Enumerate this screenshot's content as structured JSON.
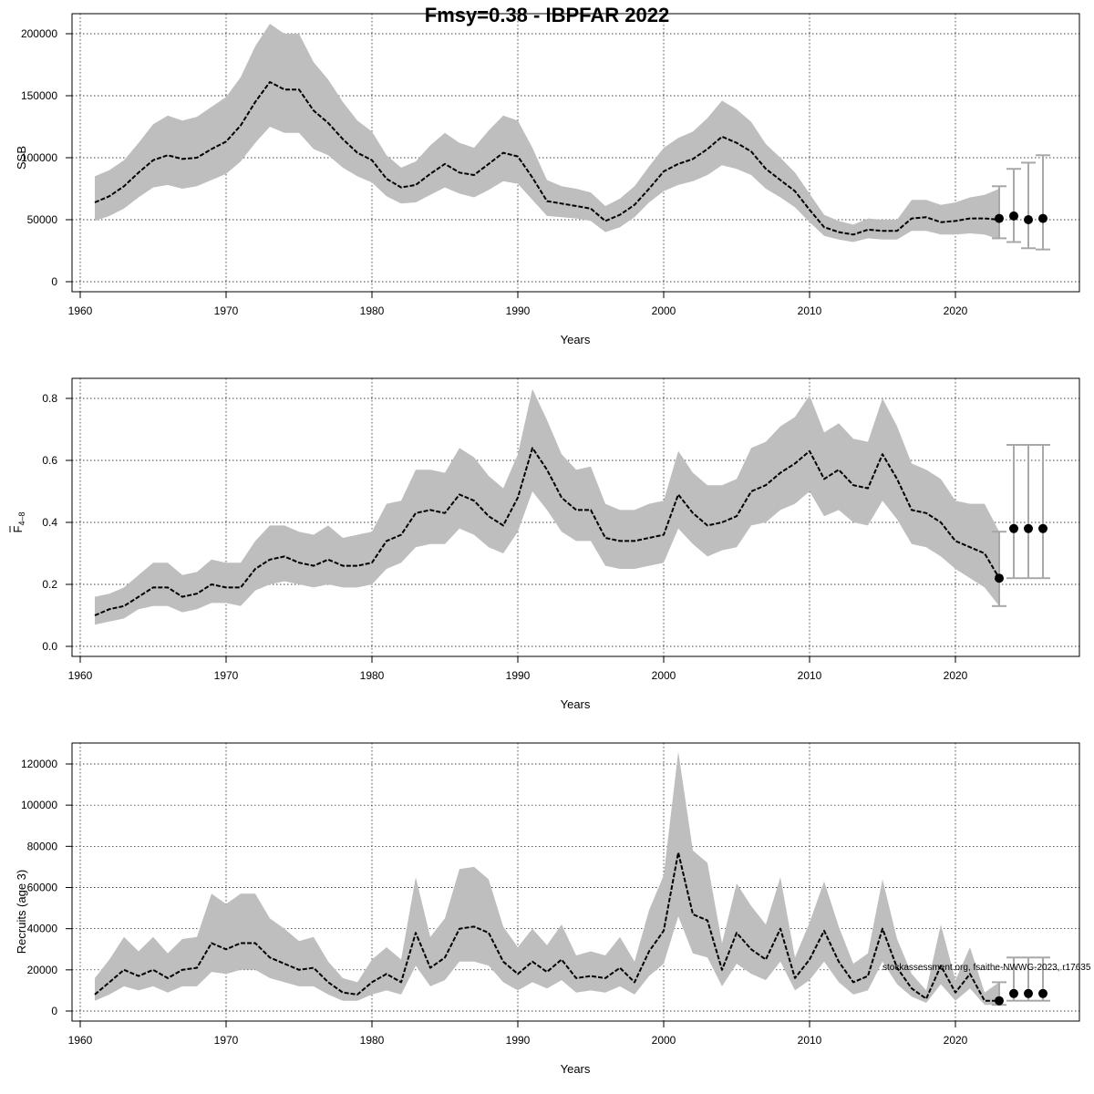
{
  "title": "Fmsy=0.38 - IBPFAR 2022",
  "note": "stockassessment.org, fsaithe-NWWG-2023, r17635",
  "chart_data": [
    {
      "type": "area",
      "id": "ssb",
      "ylabel": "SSB",
      "xlabel": "Years",
      "xlim": [
        1961,
        2026
      ],
      "ylim": [
        0,
        200000
      ],
      "xticks": [
        1960,
        1970,
        1980,
        1990,
        2000,
        2010,
        2020
      ],
      "yticks": [
        0,
        50000,
        100000,
        150000,
        200000
      ],
      "ytick_labels": [
        "0",
        "50000",
        "100000",
        "150000",
        "200000"
      ],
      "grid": true,
      "years": [
        1961,
        1962,
        1963,
        1964,
        1965,
        1966,
        1967,
        1968,
        1969,
        1970,
        1971,
        1972,
        1973,
        1974,
        1975,
        1976,
        1977,
        1978,
        1979,
        1980,
        1981,
        1982,
        1983,
        1984,
        1985,
        1986,
        1987,
        1988,
        1989,
        1990,
        1991,
        1992,
        1993,
        1994,
        1995,
        1996,
        1997,
        1998,
        1999,
        2000,
        2001,
        2002,
        2003,
        2004,
        2005,
        2006,
        2007,
        2008,
        2009,
        2010,
        2011,
        2012,
        2013,
        2014,
        2015,
        2016,
        2017,
        2018,
        2019,
        2020,
        2021,
        2022,
        2023
      ],
      "estimate": [
        64000,
        69000,
        77000,
        88000,
        98000,
        102000,
        99000,
        100000,
        107000,
        113000,
        126000,
        145000,
        161000,
        155000,
        155000,
        138000,
        128000,
        115000,
        104000,
        98000,
        83000,
        76000,
        78000,
        87000,
        95000,
        88000,
        86000,
        95000,
        104000,
        101000,
        84000,
        65000,
        63000,
        61000,
        59000,
        49000,
        54000,
        62000,
        75000,
        89000,
        95000,
        99000,
        107000,
        117000,
        112000,
        105000,
        91000,
        82000,
        73000,
        58000,
        44000,
        40000,
        38000,
        42000,
        41000,
        41000,
        51000,
        52000,
        48000,
        49000,
        51000,
        51000,
        50000
      ],
      "lower": [
        49000,
        53000,
        59000,
        68000,
        76000,
        78000,
        75000,
        77000,
        82000,
        87000,
        97000,
        112000,
        125000,
        120000,
        120000,
        107000,
        102000,
        92000,
        85000,
        80000,
        69000,
        63000,
        64000,
        70000,
        76000,
        71000,
        68000,
        74000,
        81000,
        79000,
        66000,
        53000,
        52000,
        51000,
        49000,
        40000,
        44000,
        52000,
        64000,
        73000,
        78000,
        81000,
        86000,
        94000,
        91000,
        86000,
        75000,
        68000,
        60000,
        48000,
        37000,
        34000,
        32000,
        35000,
        34000,
        34000,
        41000,
        41000,
        38000,
        38000,
        39000,
        38000,
        34000
      ],
      "upper": [
        85000,
        90000,
        98000,
        112000,
        127000,
        134000,
        130000,
        133000,
        141000,
        149000,
        165000,
        190000,
        208000,
        200000,
        200000,
        177000,
        163000,
        145000,
        130000,
        121000,
        102000,
        92000,
        97000,
        110000,
        120000,
        112000,
        108000,
        122000,
        134000,
        130000,
        108000,
        82000,
        77000,
        75000,
        72000,
        61000,
        67000,
        77000,
        93000,
        108000,
        116000,
        121000,
        132000,
        146000,
        139000,
        129000,
        111000,
        100000,
        88000,
        71000,
        54000,
        49000,
        46000,
        51000,
        50000,
        50000,
        66000,
        66000,
        62000,
        64000,
        68000,
        70000,
        75000
      ],
      "forecast": [
        {
          "year": 2023,
          "value": 51000,
          "low": 35000,
          "high": 77000
        },
        {
          "year": 2024,
          "value": 53000,
          "low": 32000,
          "high": 91000
        },
        {
          "year": 2025,
          "value": 50000,
          "low": 27000,
          "high": 96000
        },
        {
          "year": 2026,
          "value": 51000,
          "low": 26000,
          "high": 102000
        }
      ]
    },
    {
      "type": "area",
      "id": "fbar",
      "ylabel": "F",
      "ylabel_sub": "4–8",
      "xlabel": "Years",
      "xlim": [
        1961,
        2026
      ],
      "ylim": [
        0,
        0.8
      ],
      "xticks": [
        1960,
        1970,
        1980,
        1990,
        2000,
        2010,
        2020
      ],
      "yticks": [
        0,
        0.2,
        0.4,
        0.6,
        0.8
      ],
      "ytick_labels": [
        "0.0",
        "0.2",
        "0.4",
        "0.6",
        "0.8"
      ],
      "grid": true,
      "years": [
        1961,
        1962,
        1963,
        1964,
        1965,
        1966,
        1967,
        1968,
        1969,
        1970,
        1971,
        1972,
        1973,
        1974,
        1975,
        1976,
        1977,
        1978,
        1979,
        1980,
        1981,
        1982,
        1983,
        1984,
        1985,
        1986,
        1987,
        1988,
        1989,
        1990,
        1991,
        1992,
        1993,
        1994,
        1995,
        1996,
        1997,
        1998,
        1999,
        2000,
        2001,
        2002,
        2003,
        2004,
        2005,
        2006,
        2007,
        2008,
        2009,
        2010,
        2011,
        2012,
        2013,
        2014,
        2015,
        2016,
        2017,
        2018,
        2019,
        2020,
        2021,
        2022,
        2023
      ],
      "estimate": [
        0.1,
        0.12,
        0.13,
        0.16,
        0.19,
        0.19,
        0.16,
        0.17,
        0.2,
        0.19,
        0.19,
        0.25,
        0.28,
        0.29,
        0.27,
        0.26,
        0.28,
        0.26,
        0.26,
        0.27,
        0.34,
        0.36,
        0.43,
        0.44,
        0.43,
        0.49,
        0.47,
        0.42,
        0.39,
        0.48,
        0.64,
        0.57,
        0.48,
        0.44,
        0.44,
        0.35,
        0.34,
        0.34,
        0.35,
        0.36,
        0.49,
        0.43,
        0.39,
        0.4,
        0.42,
        0.5,
        0.52,
        0.56,
        0.59,
        0.63,
        0.54,
        0.57,
        0.52,
        0.51,
        0.62,
        0.54,
        0.44,
        0.43,
        0.4,
        0.34,
        0.32,
        0.3,
        0.22
      ],
      "lower": [
        0.07,
        0.08,
        0.09,
        0.12,
        0.13,
        0.13,
        0.11,
        0.12,
        0.14,
        0.14,
        0.13,
        0.18,
        0.2,
        0.21,
        0.2,
        0.19,
        0.2,
        0.19,
        0.19,
        0.2,
        0.25,
        0.27,
        0.32,
        0.33,
        0.33,
        0.38,
        0.36,
        0.32,
        0.3,
        0.37,
        0.5,
        0.44,
        0.37,
        0.34,
        0.34,
        0.26,
        0.25,
        0.25,
        0.26,
        0.27,
        0.38,
        0.33,
        0.29,
        0.31,
        0.32,
        0.39,
        0.4,
        0.44,
        0.46,
        0.5,
        0.42,
        0.44,
        0.4,
        0.39,
        0.47,
        0.41,
        0.33,
        0.32,
        0.29,
        0.25,
        0.22,
        0.19,
        0.13
      ],
      "upper": [
        0.16,
        0.17,
        0.19,
        0.23,
        0.27,
        0.27,
        0.23,
        0.24,
        0.28,
        0.27,
        0.27,
        0.34,
        0.39,
        0.39,
        0.37,
        0.36,
        0.39,
        0.35,
        0.36,
        0.37,
        0.46,
        0.47,
        0.57,
        0.57,
        0.56,
        0.64,
        0.61,
        0.55,
        0.51,
        0.62,
        0.83,
        0.73,
        0.62,
        0.57,
        0.58,
        0.46,
        0.44,
        0.44,
        0.46,
        0.47,
        0.63,
        0.56,
        0.52,
        0.52,
        0.54,
        0.64,
        0.66,
        0.71,
        0.74,
        0.81,
        0.69,
        0.72,
        0.67,
        0.66,
        0.8,
        0.71,
        0.59,
        0.57,
        0.54,
        0.47,
        0.46,
        0.46,
        0.37
      ],
      "forecast": [
        {
          "year": 2023,
          "value": 0.22,
          "low": 0.13,
          "high": 0.37
        },
        {
          "year": 2024,
          "value": 0.38,
          "low": 0.22,
          "high": 0.65
        },
        {
          "year": 2025,
          "value": 0.38,
          "low": 0.22,
          "high": 0.65
        },
        {
          "year": 2026,
          "value": 0.38,
          "low": 0.22,
          "high": 0.65
        }
      ]
    },
    {
      "type": "area",
      "id": "recruits",
      "ylabel": "Recruits (age 3)",
      "xlabel": "Years",
      "xlim": [
        1961,
        2026
      ],
      "ylim": [
        0,
        120000
      ],
      "xticks": [
        1960,
        1970,
        1980,
        1990,
        2000,
        2010,
        2020
      ],
      "yticks": [
        0,
        20000,
        40000,
        60000,
        80000,
        100000,
        120000
      ],
      "ytick_labels": [
        "0",
        "20000",
        "40000",
        "60000",
        "80000",
        "100000",
        "120000"
      ],
      "grid": true,
      "years": [
        1961,
        1962,
        1963,
        1964,
        1965,
        1966,
        1967,
        1968,
        1969,
        1970,
        1971,
        1972,
        1973,
        1974,
        1975,
        1976,
        1977,
        1978,
        1979,
        1980,
        1981,
        1982,
        1983,
        1984,
        1985,
        1986,
        1987,
        1988,
        1989,
        1990,
        1991,
        1992,
        1993,
        1994,
        1995,
        1996,
        1997,
        1998,
        1999,
        2000,
        2001,
        2002,
        2003,
        2004,
        2005,
        2006,
        2007,
        2008,
        2009,
        2010,
        2011,
        2012,
        2013,
        2014,
        2015,
        2016,
        2017,
        2018,
        2019,
        2020,
        2021,
        2022,
        2023
      ],
      "estimate": [
        8000,
        14000,
        20000,
        17000,
        20000,
        16000,
        20000,
        21000,
        33000,
        30000,
        33000,
        33000,
        26000,
        23000,
        20000,
        21000,
        14000,
        9000,
        8000,
        14000,
        18000,
        14000,
        38000,
        21000,
        26000,
        40000,
        41000,
        38000,
        24000,
        18000,
        24000,
        19000,
        25000,
        16000,
        17000,
        16000,
        21000,
        14000,
        29000,
        39000,
        77000,
        47000,
        44000,
        20000,
        38000,
        30000,
        25000,
        40000,
        16000,
        25000,
        39000,
        24000,
        14000,
        17000,
        40000,
        21000,
        11000,
        6000,
        22000,
        9000,
        18000,
        5000,
        5000
      ],
      "lower": [
        5000,
        8000,
        12000,
        10000,
        12000,
        9000,
        12000,
        12000,
        19000,
        18000,
        20000,
        20000,
        16000,
        14000,
        12000,
        12000,
        8000,
        5000,
        5000,
        8000,
        10000,
        8000,
        22000,
        12000,
        15000,
        24000,
        24000,
        22000,
        14000,
        10000,
        14000,
        11000,
        15000,
        9000,
        10000,
        9000,
        12000,
        8000,
        17000,
        23000,
        46000,
        28000,
        26000,
        12000,
        23000,
        18000,
        15000,
        24000,
        10000,
        15000,
        24000,
        14000,
        8000,
        10000,
        24000,
        13000,
        7000,
        4000,
        13000,
        5000,
        11000,
        3000,
        3000
      ],
      "upper": [
        16000,
        25000,
        36000,
        29000,
        36000,
        28000,
        35000,
        36000,
        57000,
        52000,
        57000,
        57000,
        45000,
        40000,
        34000,
        36000,
        24000,
        16000,
        14000,
        25000,
        31000,
        25000,
        65000,
        36000,
        45000,
        69000,
        70000,
        64000,
        41000,
        31000,
        40000,
        32000,
        42000,
        27000,
        29000,
        27000,
        36000,
        24000,
        49000,
        66000,
        126000,
        78000,
        72000,
        33000,
        62000,
        51000,
        42000,
        65000,
        26000,
        43000,
        63000,
        41000,
        23000,
        28000,
        64000,
        35000,
        18000,
        10000,
        42000,
        15000,
        31000,
        9000,
        14000
      ],
      "forecast": [
        {
          "year": 2023,
          "value": 5000,
          "low": 3000,
          "high": 14000
        },
        {
          "year": 2024,
          "value": 8500,
          "low": 5000,
          "high": 26000
        },
        {
          "year": 2025,
          "value": 8500,
          "low": 5000,
          "high": 26000
        },
        {
          "year": 2026,
          "value": 8500,
          "low": 5000,
          "high": 26000
        }
      ]
    }
  ]
}
